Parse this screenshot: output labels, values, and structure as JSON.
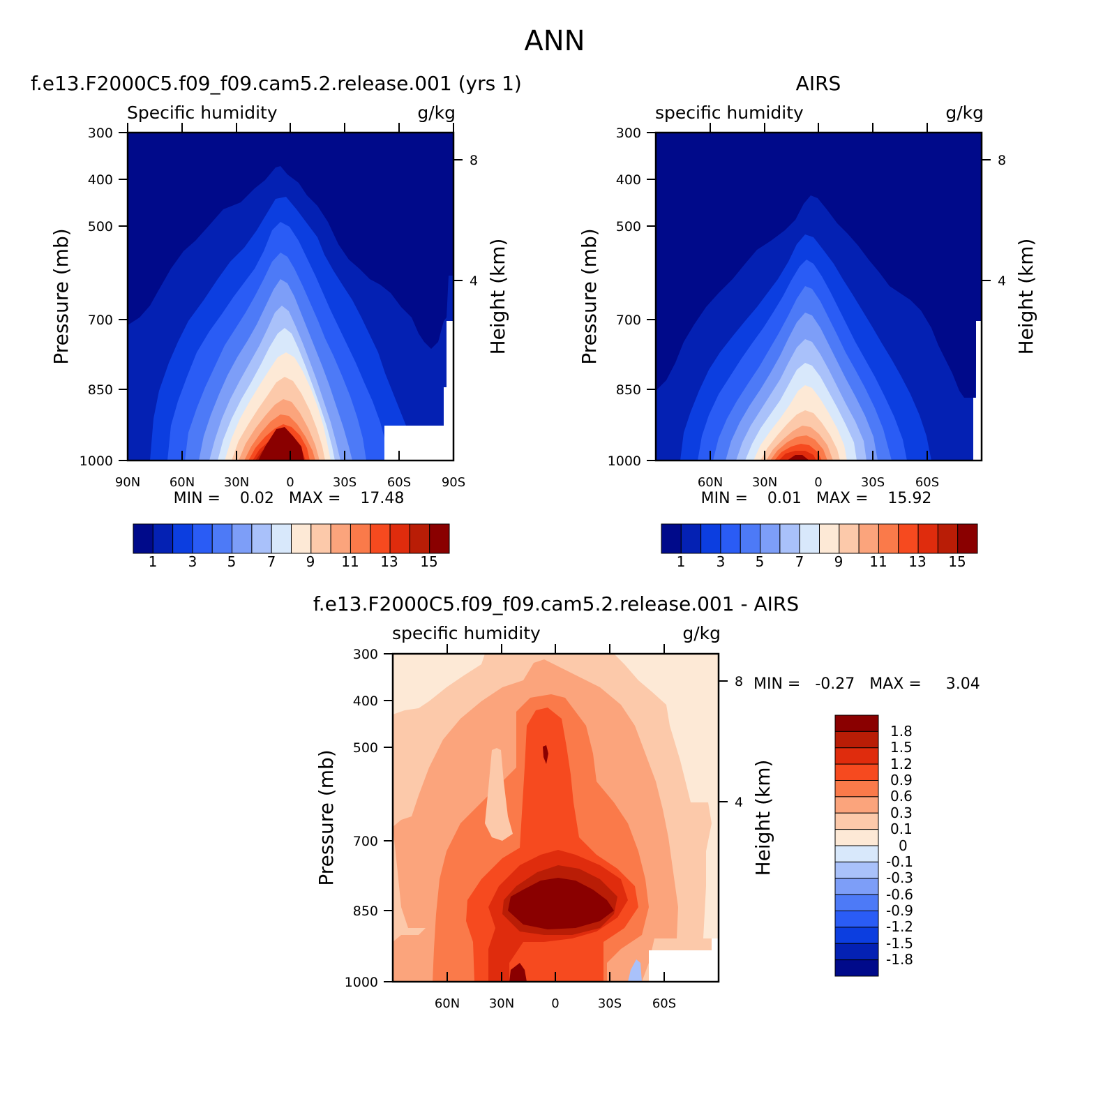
{
  "figure": {
    "title": "ANN"
  },
  "panels": {
    "model": {
      "title": "f.e13.F2000C5.f09_f09.cam5.2.release.001 (yrs 1)",
      "left_label": "Specific humidity",
      "right_label": "g/kg",
      "ylabel": "Pressure (mb)",
      "ylabel_right": "Height (km)",
      "min_max": "MIN =    0.02   MAX =    17.48"
    },
    "obs": {
      "title": "AIRS",
      "left_label": "specific humidity",
      "right_label": "g/kg",
      "ylabel": "Pressure (mb)",
      "ylabel_right": "Height (km)",
      "min_max": "MIN =    0.01   MAX =    15.92"
    },
    "diff": {
      "title": "f.e13.F2000C5.f09_f09.cam5.2.release.001 - AIRS",
      "left_label": "specific humidity",
      "right_label": "g/kg",
      "ylabel": "Pressure (mb)",
      "ylabel_right": "Height (km)",
      "min_max": "MIN =   -0.27   MAX =     3.04"
    }
  },
  "colors": {
    "abs_palette": [
      "#000a8a",
      "#0421b3",
      "#0c3ee0",
      "#2a5cf5",
      "#4d7af7",
      "#7d9ef8",
      "#a9c1fa",
      "#d8e8fb",
      "#fde9d6",
      "#fcc9aa",
      "#fba47c",
      "#fa7a4a",
      "#f64a1f",
      "#df2c0d",
      "#b91d06",
      "#8a0000"
    ],
    "diff_palette": [
      "#8a0000",
      "#b91d06",
      "#df2c0d",
      "#f64a1f",
      "#fa7a4a",
      "#fba47c",
      "#fcc9aa",
      "#fde9d6",
      "#d8e8fb",
      "#a9c1fa",
      "#7d9ef8",
      "#4d7af7",
      "#2a5cf5",
      "#0c3ee0",
      "#0421b3",
      "#000a8a"
    ]
  },
  "chart_data": [
    {
      "type": "heatmap",
      "panel": "model",
      "x_tick_labels": [
        "90N",
        "60N",
        "30N",
        "0",
        "30S",
        "60S",
        "90S"
      ],
      "y_tick_labels": [
        "300",
        "400",
        "500",
        "700",
        "850",
        "1000"
      ],
      "y_right_ticks": [
        "8",
        "4"
      ],
      "colorbar_labels": [
        "1",
        "3",
        "5",
        "7",
        "9",
        "11",
        "13",
        "15"
      ],
      "levels": [
        1,
        2,
        3,
        4,
        5,
        6,
        7,
        8,
        9,
        10,
        11,
        12,
        13,
        14,
        15
      ],
      "xlim": [
        90,
        -90
      ],
      "ylim": [
        1000,
        300
      ],
      "min": 0.02,
      "max": 17.48
    },
    {
      "type": "heatmap",
      "panel": "obs",
      "x_tick_labels": [
        "60N",
        "30N",
        "0",
        "30S",
        "60S"
      ],
      "y_tick_labels": [
        "300",
        "400",
        "500",
        "700",
        "850",
        "1000"
      ],
      "y_right_ticks": [
        "8",
        "4"
      ],
      "colorbar_labels": [
        "1",
        "3",
        "5",
        "7",
        "9",
        "11",
        "13",
        "15"
      ],
      "levels": [
        1,
        2,
        3,
        4,
        5,
        6,
        7,
        8,
        9,
        10,
        11,
        12,
        13,
        14,
        15
      ],
      "xlim": [
        90,
        -90
      ],
      "ylim": [
        1000,
        300
      ],
      "min": 0.01,
      "max": 15.92
    },
    {
      "type": "heatmap",
      "panel": "diff",
      "x_tick_labels": [
        "60N",
        "30N",
        "0",
        "30S",
        "60S"
      ],
      "y_tick_labels": [
        "300",
        "400",
        "500",
        "700",
        "850",
        "1000"
      ],
      "y_right_ticks": [
        "8",
        "4"
      ],
      "colorbar_labels": [
        "1.8",
        "1.5",
        "1.2",
        "0.9",
        "0.6",
        "0.3",
        "0.1",
        "0",
        "-0.1",
        "-0.3",
        "-0.6",
        "-0.9",
        "-1.2",
        "-1.5",
        "-1.8"
      ],
      "xlim": [
        90,
        -90
      ],
      "ylim": [
        1000,
        300
      ],
      "min": -0.27,
      "max": 3.04
    }
  ]
}
